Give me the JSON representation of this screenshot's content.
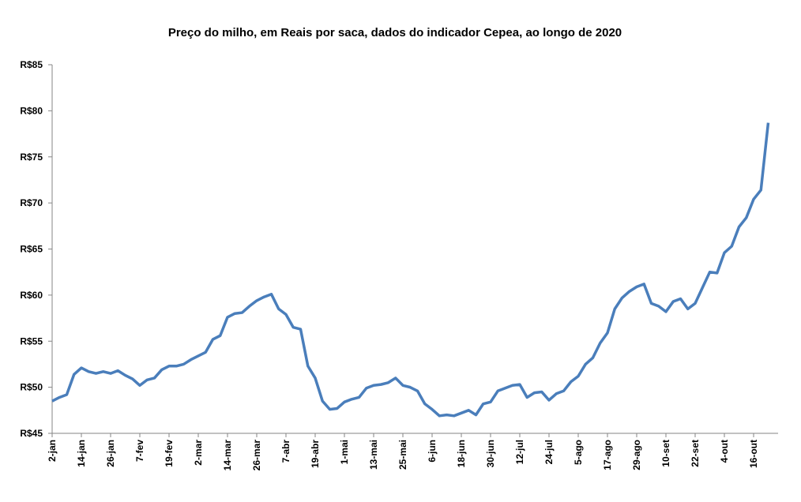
{
  "chart_data": {
    "type": "line",
    "title": "Preço do milho, em Reais por saca, dados do indicador Cepea, ao longo de 2020",
    "categories": [
      "2-jan",
      null,
      null,
      null,
      "14-jan",
      null,
      null,
      null,
      "26-jan",
      null,
      null,
      null,
      "7-fev",
      null,
      null,
      null,
      "19-fev",
      null,
      null,
      null,
      "2-mar",
      null,
      null,
      null,
      "14-mar",
      null,
      null,
      null,
      "26-mar",
      null,
      null,
      null,
      "7-abr",
      null,
      null,
      null,
      "19-abr",
      null,
      null,
      null,
      "1-mai",
      null,
      null,
      null,
      "13-mai",
      null,
      null,
      null,
      "25-mai",
      null,
      null,
      null,
      "6-jun",
      null,
      null,
      null,
      "18-jun",
      null,
      null,
      null,
      "30-jun",
      null,
      null,
      null,
      "12-jul",
      null,
      null,
      null,
      "24-jul",
      null,
      null,
      null,
      "5-ago",
      null,
      null,
      null,
      "17-ago",
      null,
      null,
      null,
      "29-ago",
      null,
      null,
      null,
      "10-set",
      null,
      null,
      null,
      "22-set",
      null,
      null,
      null,
      "4-out",
      null,
      null,
      null,
      "16-out",
      null,
      null
    ],
    "color": "#4a7ebb",
    "values": [
      48.5,
      48.9,
      49.2,
      51.4,
      52.1,
      51.7,
      51.5,
      51.7,
      51.5,
      51.8,
      51.3,
      50.9,
      50.2,
      50.8,
      51.0,
      51.9,
      52.3,
      52.3,
      52.5,
      53.0,
      53.4,
      53.8,
      55.2,
      55.6,
      57.6,
      58.0,
      58.1,
      58.8,
      59.4,
      59.8,
      60.1,
      58.5,
      57.9,
      56.5,
      56.3,
      52.3,
      51.0,
      48.5,
      47.6,
      47.7,
      48.4,
      48.7,
      48.9,
      49.9,
      50.2,
      50.3,
      50.5,
      51.0,
      50.2,
      50.0,
      49.6,
      48.2,
      47.6,
      46.9,
      47.0,
      46.9,
      47.2,
      47.5,
      47.0,
      48.2,
      48.4,
      49.6,
      49.9,
      50.2,
      50.3,
      48.9,
      49.4,
      49.5,
      48.6,
      49.3,
      49.6,
      50.6,
      51.2,
      52.5,
      53.2,
      54.8,
      55.9,
      58.5,
      59.7,
      60.4,
      60.9,
      61.2,
      59.1,
      58.8,
      58.2,
      59.3,
      59.6,
      58.5,
      59.1,
      60.8,
      62.5,
      62.4,
      64.6,
      65.3,
      67.4,
      68.4,
      70.4,
      71.4,
      78.7
    ],
    "ylim": [
      45,
      85
    ],
    "yticks": [
      {
        "value": 45,
        "label": "R$45"
      },
      {
        "value": 50,
        "label": "R$50"
      },
      {
        "value": 55,
        "label": "R$55"
      },
      {
        "value": 60,
        "label": "R$60"
      },
      {
        "value": 65,
        "label": "R$65"
      },
      {
        "value": 70,
        "label": "R$70"
      },
      {
        "value": 75,
        "label": "R$75"
      },
      {
        "value": 80,
        "label": "R$80"
      },
      {
        "value": 85,
        "label": "R$85"
      }
    ],
    "grid": false
  }
}
